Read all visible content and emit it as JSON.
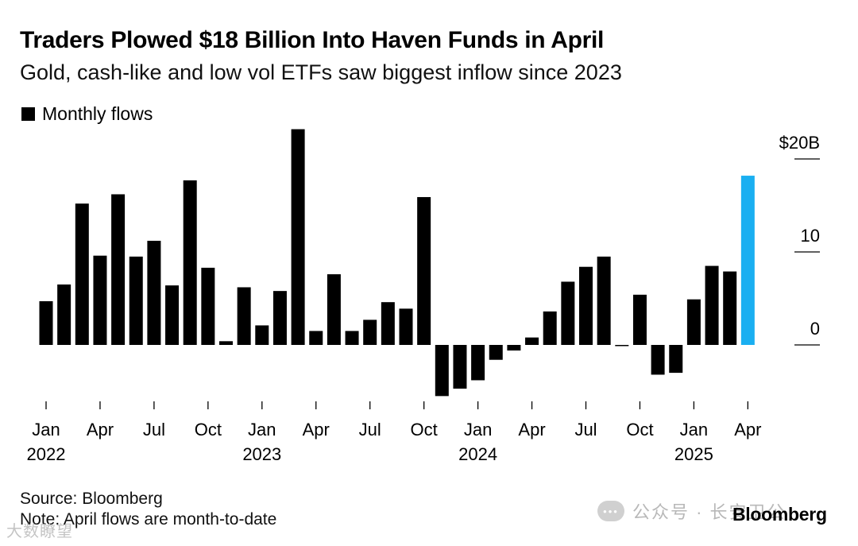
{
  "chart_data": {
    "type": "bar",
    "title": "Traders Plowed $18 Billion Into Haven Funds in April",
    "subtitle": "Gold, cash-like and low vol ETFs saw biggest inflow since 2023",
    "legend": "Monthly flows",
    "ylabel": "",
    "ylim": [
      -6,
      23
    ],
    "yticks": [
      {
        "value": 20,
        "label": "$20B"
      },
      {
        "value": 10,
        "label": "10"
      },
      {
        "value": 0,
        "label": "0"
      }
    ],
    "categories": [
      "2022-01",
      "2022-02",
      "2022-03",
      "2022-04",
      "2022-05",
      "2022-06",
      "2022-07",
      "2022-08",
      "2022-09",
      "2022-10",
      "2022-11",
      "2022-12",
      "2023-01",
      "2023-02",
      "2023-03",
      "2023-04",
      "2023-05",
      "2023-06",
      "2023-07",
      "2023-08",
      "2023-09",
      "2023-10",
      "2023-11",
      "2023-12",
      "2024-01",
      "2024-02",
      "2024-03",
      "2024-04",
      "2024-05",
      "2024-06",
      "2024-07",
      "2024-08",
      "2024-09",
      "2024-10",
      "2024-11",
      "2024-12",
      "2025-01",
      "2025-02",
      "2025-03",
      "2025-04"
    ],
    "values": [
      4.7,
      6.5,
      15.2,
      9.6,
      16.2,
      9.5,
      11.2,
      6.4,
      17.7,
      8.3,
      0.4,
      6.2,
      2.1,
      5.8,
      23.2,
      1.5,
      7.6,
      1.5,
      2.7,
      4.6,
      3.9,
      15.9,
      -5.5,
      -4.7,
      -3.8,
      -1.6,
      -0.6,
      0.8,
      3.6,
      6.8,
      8.4,
      9.5,
      -0.1,
      5.4,
      -3.2,
      -3.0,
      4.9,
      8.5,
      7.9,
      18.2
    ],
    "highlight_index": 39,
    "colors": {
      "bar": "#000000",
      "highlight": "#1aaff1"
    },
    "xticks": [
      {
        "index": 0,
        "month": "Jan",
        "year": "2022"
      },
      {
        "index": 3,
        "month": "Apr",
        "year": ""
      },
      {
        "index": 6,
        "month": "Jul",
        "year": ""
      },
      {
        "index": 9,
        "month": "Oct",
        "year": ""
      },
      {
        "index": 12,
        "month": "Jan",
        "year": "2023"
      },
      {
        "index": 15,
        "month": "Apr",
        "year": ""
      },
      {
        "index": 18,
        "month": "Jul",
        "year": ""
      },
      {
        "index": 21,
        "month": "Oct",
        "year": ""
      },
      {
        "index": 24,
        "month": "Jan",
        "year": "2024"
      },
      {
        "index": 27,
        "month": "Apr",
        "year": ""
      },
      {
        "index": 30,
        "month": "Jul",
        "year": ""
      },
      {
        "index": 33,
        "month": "Oct",
        "year": ""
      },
      {
        "index": 36,
        "month": "Jan",
        "year": "2025"
      },
      {
        "index": 39,
        "month": "Apr",
        "year": ""
      }
    ]
  },
  "footer": {
    "source": "Source: Bloomberg",
    "note": "Note: April flows are month-to-date",
    "brand": "Bloomberg"
  },
  "watermark": {
    "account": "公众号 · 长安卫公",
    "logo_text": "•••",
    "corner": "大数瞭望"
  }
}
